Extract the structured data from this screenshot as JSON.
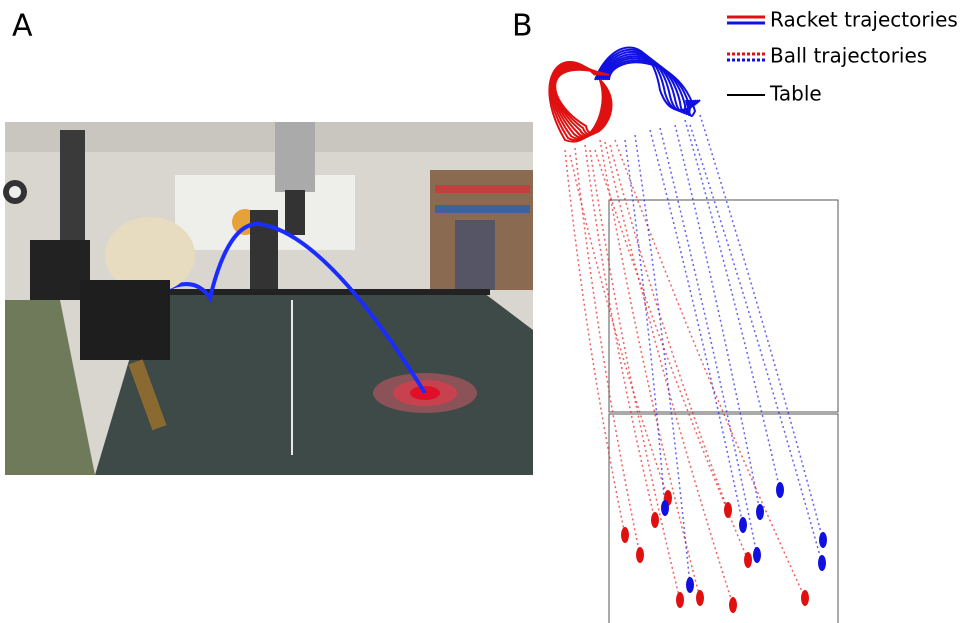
{
  "panels": [
    {
      "label": "A"
    },
    {
      "label": "B",
      "legend": [
        {
          "label": "Racket trajectories"
        },
        {
          "label": "Ball trajectories"
        },
        {
          "label": "Table"
        }
      ]
    }
  ]
}
